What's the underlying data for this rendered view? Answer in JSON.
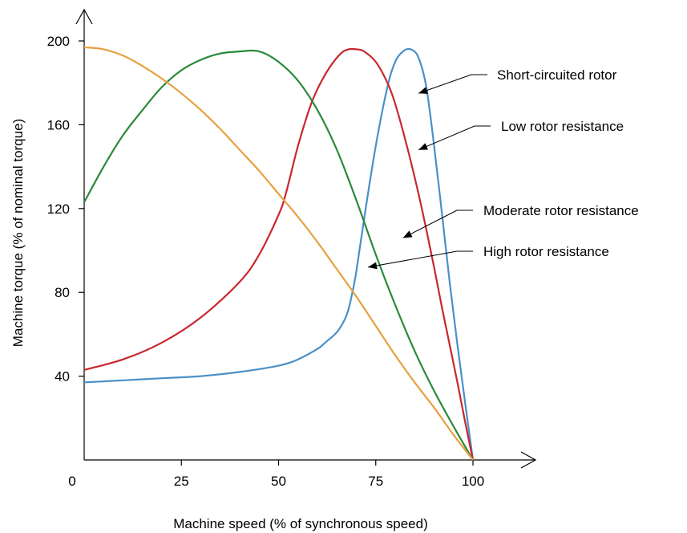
{
  "chart_data": {
    "type": "line",
    "xlabel": "Machine speed (% of synchronous speed)",
    "ylabel": "Machine torque (% of nominal torque)",
    "xlim": [
      0,
      100
    ],
    "ylim": [
      0,
      200
    ],
    "x_ticks": [
      "0",
      "25",
      "50",
      "75",
      "100"
    ],
    "y_ticks": [
      "40",
      "80",
      "120",
      "160",
      "200"
    ],
    "grid": false,
    "series": [
      {
        "name": "Short-circuited rotor",
        "color": "#4a90c8",
        "x": [
          0,
          10,
          20,
          30,
          40,
          50,
          55,
          60,
          62,
          65,
          67,
          68,
          69,
          70,
          72,
          75,
          78,
          80,
          82,
          84,
          86,
          88,
          90,
          92,
          94,
          96,
          98,
          100
        ],
        "y": [
          37,
          38,
          39,
          40,
          42,
          45,
          48,
          53,
          56,
          61,
          67,
          72,
          80,
          90,
          115,
          150,
          178,
          190,
          195,
          196,
          192,
          178,
          150,
          118,
          85,
          55,
          27,
          0
        ]
      },
      {
        "name": "Low rotor resistance",
        "color": "#c8282e",
        "x": [
          0,
          10,
          20,
          30,
          40,
          45,
          50,
          52,
          55,
          58,
          60,
          63,
          66,
          68,
          70,
          72,
          75,
          78,
          80,
          83,
          86,
          88,
          90,
          92,
          94,
          96,
          98,
          100
        ],
        "y": [
          43,
          48,
          56,
          68,
          85,
          98,
          117,
          128,
          150,
          168,
          177,
          187,
          194,
          196,
          196,
          195,
          190,
          180,
          170,
          150,
          127,
          110,
          92,
          73,
          55,
          37,
          18,
          0
        ]
      },
      {
        "name": "Moderate rotor resistance",
        "color": "#2a8a3c",
        "x": [
          0,
          5,
          10,
          15,
          20,
          25,
          30,
          35,
          40,
          45,
          50,
          55,
          60,
          65,
          70,
          75,
          80,
          85,
          90,
          95,
          100
        ],
        "y": [
          123,
          140,
          155,
          167,
          178,
          186,
          191,
          194,
          195,
          195,
          190,
          181,
          167,
          148,
          124,
          98,
          74,
          52,
          33,
          16,
          0
        ]
      },
      {
        "name": "High rotor resistance",
        "color": "#e8a040",
        "x": [
          0,
          5,
          10,
          15,
          20,
          25,
          30,
          35,
          40,
          45,
          50,
          55,
          60,
          65,
          70,
          75,
          80,
          85,
          90,
          95,
          100
        ],
        "y": [
          197,
          196,
          193,
          188,
          182,
          175,
          167,
          158,
          148,
          138,
          127,
          116,
          104,
          91,
          78,
          64,
          50,
          37,
          25,
          12,
          0
        ]
      }
    ],
    "annotations": [
      {
        "label": "Short-circuited rotor",
        "series": 0,
        "target": [
          86,
          175
        ]
      },
      {
        "label": "Low rotor resistance",
        "series": 1,
        "target": [
          86,
          148
        ]
      },
      {
        "label": "Moderate rotor resistance",
        "series": 2,
        "target": [
          82,
          106
        ]
      },
      {
        "label": "High rotor resistance",
        "series": 3,
        "target": [
          73,
          92
        ]
      }
    ]
  }
}
